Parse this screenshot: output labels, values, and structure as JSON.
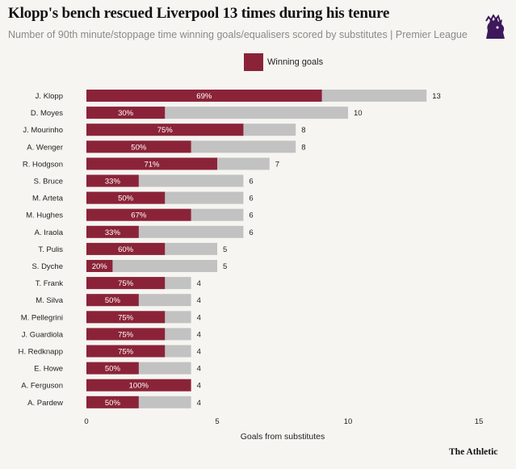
{
  "title": "Klopp's bench rescued Liverpool 13 times during his tenure",
  "subtitle": "Number of 90th minute/stoppage time winning goals/equalisers scored by substitutes | Premier League",
  "brand": "The Athletic",
  "logo_icon": "premier-league-lion-icon",
  "colors": {
    "winning": "#8b2338",
    "total": "#c2c2c2",
    "background": "#f6f5f1"
  },
  "chart_data": {
    "type": "bar",
    "orientation": "horizontal",
    "xlabel": "Goals from substitutes",
    "xlim": [
      0,
      15
    ],
    "xticks": [
      0,
      5,
      10,
      15
    ],
    "legend": {
      "entries": [
        "Winning goals"
      ],
      "placement": "top-center"
    },
    "grid": false,
    "categories": [
      "J. Klopp",
      "D. Moyes",
      "J. Mourinho",
      "A. Wenger",
      "R. Hodgson",
      "S. Bruce",
      "M. Arteta",
      "M. Hughes",
      "A. Iraola",
      "T. Pulis",
      "S. Dyche",
      "T. Frank",
      "M. Silva",
      "M. Pellegrini",
      "J. Guardiola",
      "H. Redknapp",
      "E. Howe",
      "A. Ferguson",
      "A. Pardew"
    ],
    "series": [
      {
        "name": "Winning goals",
        "values": [
          9,
          3,
          6,
          4,
          5,
          2,
          3,
          4,
          2,
          3,
          1,
          3,
          2,
          3,
          3,
          3,
          2,
          4,
          2
        ]
      }
    ],
    "totals": [
      13,
      10,
      8,
      8,
      7,
      6,
      6,
      6,
      6,
      5,
      5,
      4,
      4,
      4,
      4,
      4,
      4,
      4,
      4
    ],
    "pct_labels": [
      "69%",
      "30%",
      "75%",
      "50%",
      "71%",
      "33%",
      "50%",
      "67%",
      "33%",
      "60%",
      "20%",
      "75%",
      "50%",
      "75%",
      "75%",
      "75%",
      "50%",
      "100%",
      "50%"
    ]
  }
}
